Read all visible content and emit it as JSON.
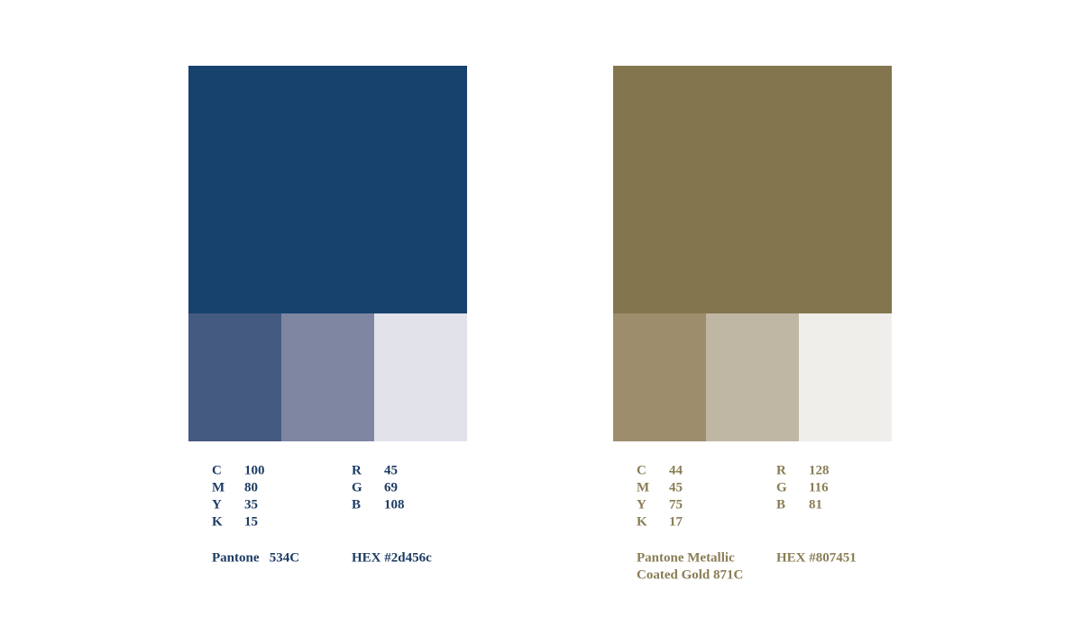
{
  "palettes": [
    {
      "color": "#17426e",
      "text_color": "#1d3d64",
      "tints": [
        "#455a80",
        "#7e86a2",
        "#e1e2ea"
      ],
      "cmyk": [
        {
          "label": "C",
          "value": "100"
        },
        {
          "label": "M",
          "value": "80"
        },
        {
          "label": "Y",
          "value": "35"
        },
        {
          "label": "K",
          "value": "15"
        }
      ],
      "rgb": [
        {
          "label": "R",
          "value": "45"
        },
        {
          "label": "G",
          "value": "69"
        },
        {
          "label": "B",
          "value": "108"
        }
      ],
      "pantone": [
        "Pantone   534C"
      ],
      "hex": "HEX #2d456c"
    },
    {
      "color": "#83764f",
      "text_color": "#8a7d55",
      "tints": [
        "#9e8d6d",
        "#c0b6a4",
        "#efeeea"
      ],
      "cmyk": [
        {
          "label": "C",
          "value": "44"
        },
        {
          "label": "M",
          "value": "45"
        },
        {
          "label": "Y",
          "value": "75"
        },
        {
          "label": "K",
          "value": "17"
        }
      ],
      "rgb": [
        {
          "label": "R",
          "value": "128"
        },
        {
          "label": "G",
          "value": "116"
        },
        {
          "label": "B",
          "value": "81"
        }
      ],
      "pantone": [
        "Pantone Metallic",
        "Coated Gold 871C"
      ],
      "hex": "HEX #807451"
    }
  ]
}
